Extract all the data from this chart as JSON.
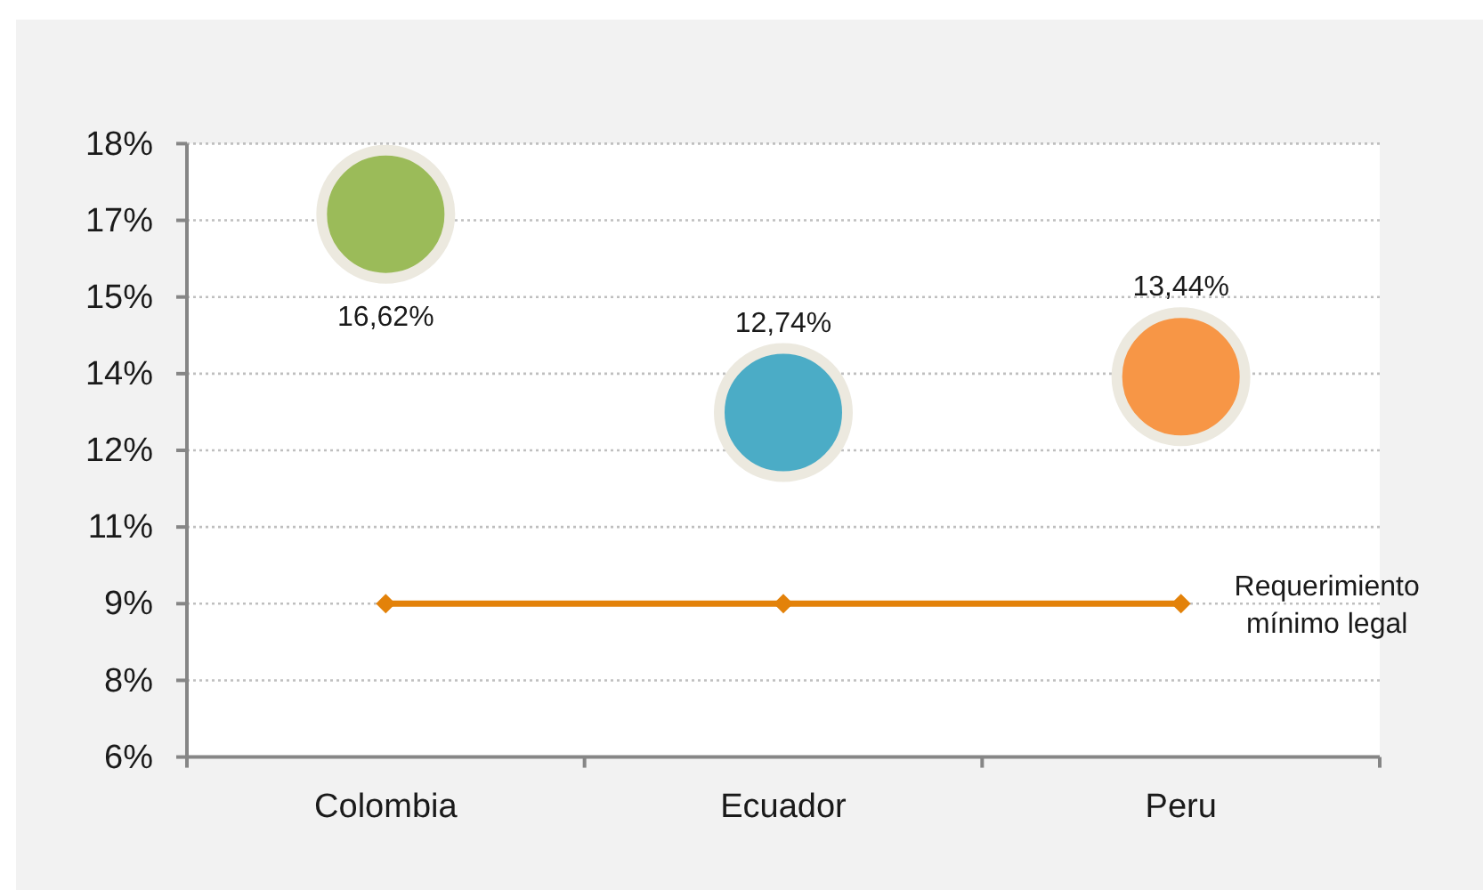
{
  "chart_data": {
    "type": "bubble",
    "categories": [
      "Colombia",
      "Ecuador",
      "Peru"
    ],
    "series": [
      {
        "colors": [
          "#9bbb59",
          "#4bacc6",
          "#f79646"
        ],
        "values": [
          16.62,
          12.74,
          13.44
        ],
        "sizes": [
          1,
          1,
          1
        ],
        "value_labels": [
          "16,62%",
          "12,74%",
          "13,44%"
        ]
      },
      {
        "type": "line",
        "name": "Requerimiento mínimo legal",
        "color": "#e3820a",
        "values": [
          9,
          9,
          9
        ],
        "marker": "diamond",
        "line_style": "solid"
      }
    ],
    "ylim": [
      6,
      18
    ],
    "yticks": [
      {
        "value": 6,
        "label": "6%"
      },
      {
        "value": 7.5,
        "label": "8%"
      },
      {
        "value": 9,
        "label": "9%"
      },
      {
        "value": 10.5,
        "label": "11%"
      },
      {
        "value": 12,
        "label": "12%"
      },
      {
        "value": 13.5,
        "label": "14%"
      },
      {
        "value": 15,
        "label": "15%"
      },
      {
        "value": 16.5,
        "label": "17%"
      },
      {
        "value": 18,
        "label": "18%"
      }
    ],
    "grid": "y",
    "legend": false
  }
}
